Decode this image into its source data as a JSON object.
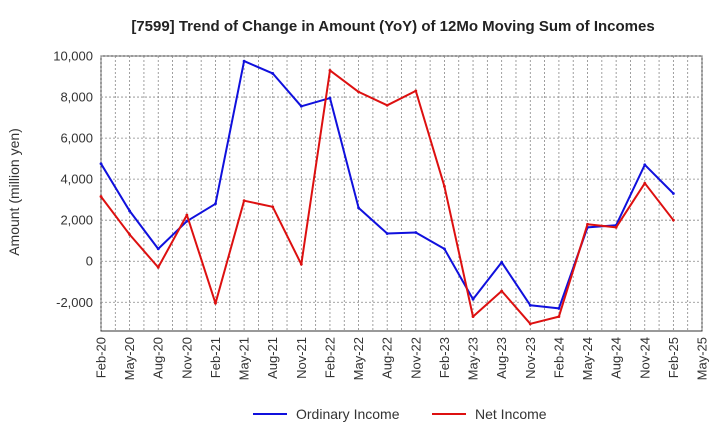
{
  "chart_data": {
    "type": "line",
    "title": "[7599]  Trend of Change in Amount (YoY) of 12Mo Moving Sum of Incomes",
    "xlabel": "",
    "ylabel": "Amount (million yen)",
    "ylim": [
      -3400,
      10000
    ],
    "yticks": [
      -2000,
      0,
      2000,
      4000,
      6000,
      8000,
      10000
    ],
    "ytick_labels": [
      "-2,000",
      "0",
      "2,000",
      "4,000",
      "6,000",
      "8,000",
      "10,000"
    ],
    "categories": [
      "Feb-20",
      "May-20",
      "Aug-20",
      "Nov-20",
      "Feb-21",
      "May-21",
      "Aug-21",
      "Nov-21",
      "Feb-22",
      "May-22",
      "Aug-22",
      "Nov-22",
      "Feb-23",
      "May-23",
      "Aug-23",
      "Nov-23",
      "Feb-24",
      "May-24",
      "Aug-24",
      "Nov-24",
      "Feb-25",
      "May-25"
    ],
    "grid": true,
    "legend_position": "bottom",
    "series": [
      {
        "name": "Ordinary Income",
        "color": "#1010dd",
        "values": [
          4750,
          2450,
          600,
          1950,
          2800,
          9750,
          9150,
          7550,
          7950,
          2600,
          1350,
          1400,
          600,
          -1850,
          -50,
          -2150,
          -2300,
          1650,
          1750,
          4700,
          3300,
          null
        ]
      },
      {
        "name": "Net Income",
        "color": "#dd1010",
        "values": [
          3150,
          1300,
          -300,
          2250,
          -2050,
          2950,
          2650,
          -150,
          9300,
          8250,
          7600,
          8300,
          3650,
          -2700,
          -1450,
          -3050,
          -2700,
          1800,
          1650,
          3800,
          2000,
          null
        ]
      }
    ]
  }
}
